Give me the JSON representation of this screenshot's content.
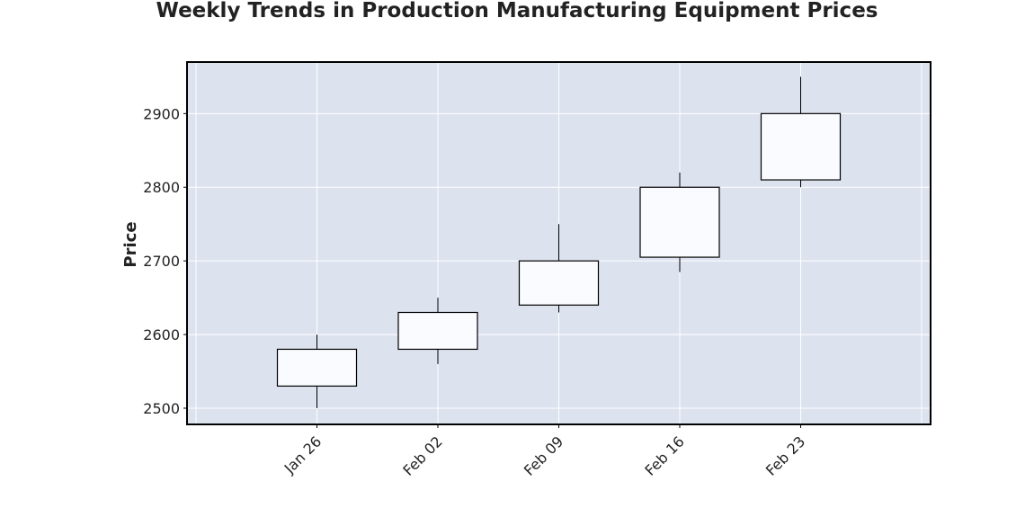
{
  "chart_data": {
    "type": "candlestick",
    "title": "Weekly Trends in Production Manufacturing Equipment Prices",
    "xlabel": "",
    "ylabel": "Price",
    "categories": [
      "Jan 26",
      "Feb 02",
      "Feb 09",
      "Feb 16",
      "Feb 23"
    ],
    "ylim": [
      2478,
      2970
    ],
    "yticks": [
      2500,
      2600,
      2700,
      2800,
      2900
    ],
    "ytick_labels": [
      "2500",
      "2600",
      "2700",
      "2800",
      "2900"
    ],
    "grid": true,
    "candles": [
      {
        "date": "Jan 26",
        "open": 2530,
        "high": 2600,
        "low": 2500,
        "close": 2580
      },
      {
        "date": "Feb 02",
        "open": 2580,
        "high": 2650,
        "low": 2560,
        "close": 2630
      },
      {
        "date": "Feb 09",
        "open": 2640,
        "high": 2750,
        "low": 2630,
        "close": 2700
      },
      {
        "date": "Feb 16",
        "open": 2705,
        "high": 2820,
        "low": 2685,
        "close": 2800
      },
      {
        "date": "Feb 23",
        "open": 2810,
        "high": 2950,
        "low": 2800,
        "close": 2900
      }
    ],
    "colors": {
      "plot_background": "#dde2ef",
      "grid": "#ffffff",
      "candle_body": "#f9fbfe",
      "candle_edge": "#000000",
      "axis_frame": "#000000",
      "text": "#222222"
    }
  }
}
